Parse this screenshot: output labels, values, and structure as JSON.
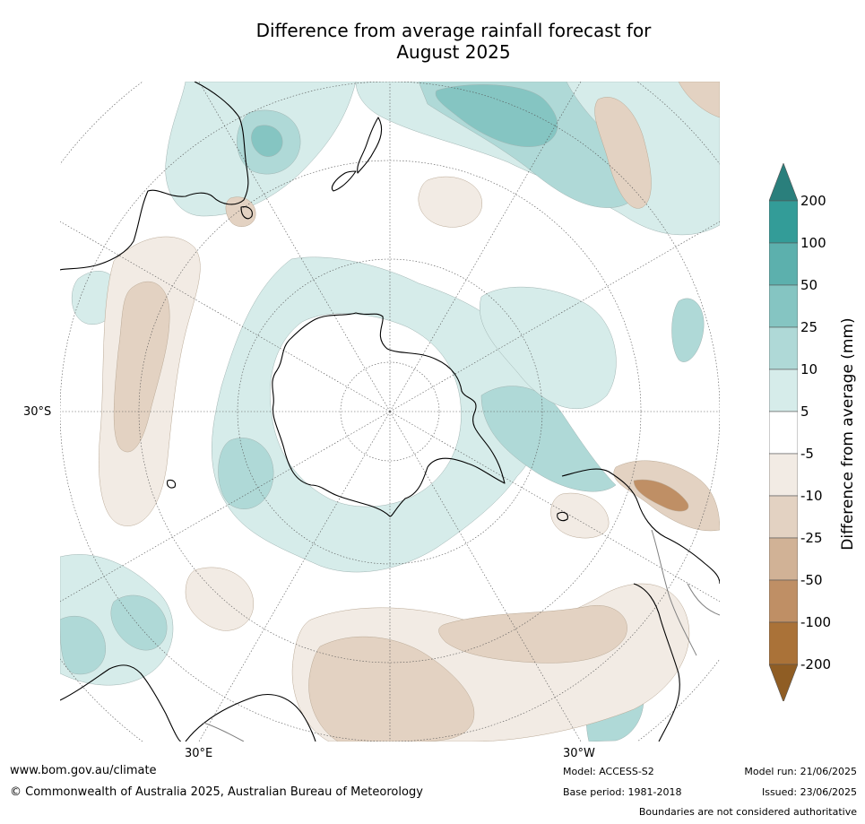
{
  "title": {
    "line1": "Difference from average rainfall forecast for",
    "line2": "August 2025"
  },
  "map": {
    "projection": "south-polar",
    "lat_label": "30°S",
    "lon_labels": {
      "east": "30°E",
      "west": "30°W"
    },
    "colors": {
      "ocean_neutral": "#ffffff",
      "coastline": "#000000",
      "boundary": "#808080",
      "graticule": "#555555"
    }
  },
  "colorbar": {
    "title": "Difference from average (mm)",
    "ticks": [
      "200",
      "100",
      "50",
      "25",
      "10",
      "5",
      "-5",
      "-10",
      "-25",
      "-50",
      "-100",
      "-200"
    ],
    "colors": [
      "#2a7f7c",
      "#339c98",
      "#5cb0ad",
      "#85c5c2",
      "#afd9d7",
      "#d6ecea",
      "#ffffff",
      "#f2ebe4",
      "#e3d2c2",
      "#d1b296",
      "#bf8f65",
      "#aa7238",
      "#8f5d24"
    ]
  },
  "footer": {
    "url": "www.bom.gov.au/climate",
    "copyright": "© Commonwealth of Australia 2025, Australian Bureau of Meteorology",
    "model": "Model: ACCESS-S2",
    "base_period": "Base period: 1981-2018",
    "model_run": "Model run: 21/06/2025",
    "issued": "Issued: 23/06/2025",
    "disclaimer": "Boundaries are not considered authoritative"
  }
}
